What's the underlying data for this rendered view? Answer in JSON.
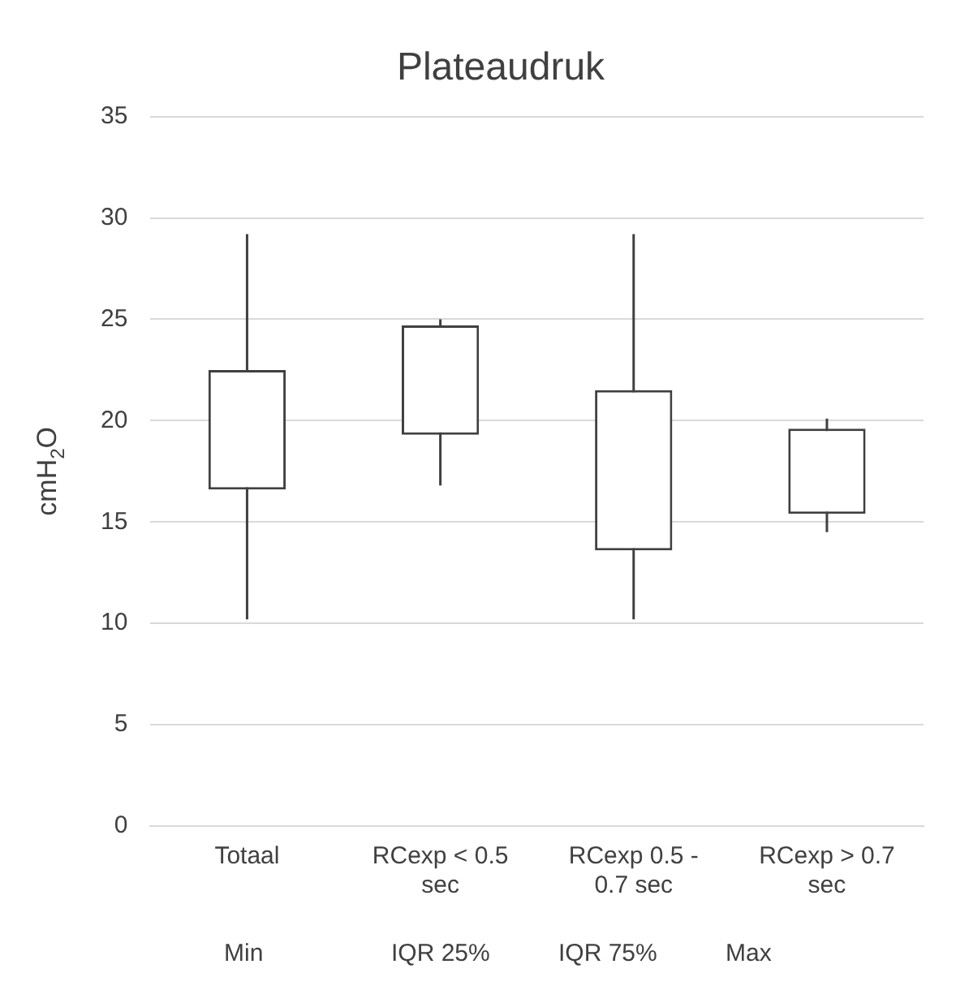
{
  "chart_data": {
    "type": "candlestick",
    "title": "Plateaudruk",
    "ylabel": "cmH$_{2}$O",
    "categories": [
      "Totaal",
      "RCexp < 0.5 sec",
      "RCexp 0.5 - 0.7 sec",
      "RCexp > 0.7 sec"
    ],
    "ohlc": [
      [
        16.6,
        29.2,
        10.2,
        22.5
      ],
      [
        19.3,
        25.0,
        16.8,
        24.7
      ],
      [
        13.6,
        29.2,
        10.2,
        21.5
      ],
      [
        15.4,
        20.1,
        14.5,
        19.6
      ]
    ],
    "ylim": [
      0,
      35
    ],
    "yticks": [
      0,
      5,
      10,
      15,
      20,
      25,
      30,
      35
    ],
    "grid": "y",
    "annotations": [
      "Min",
      "IQR 25%",
      "IQR 75%",
      "Max"
    ]
  }
}
